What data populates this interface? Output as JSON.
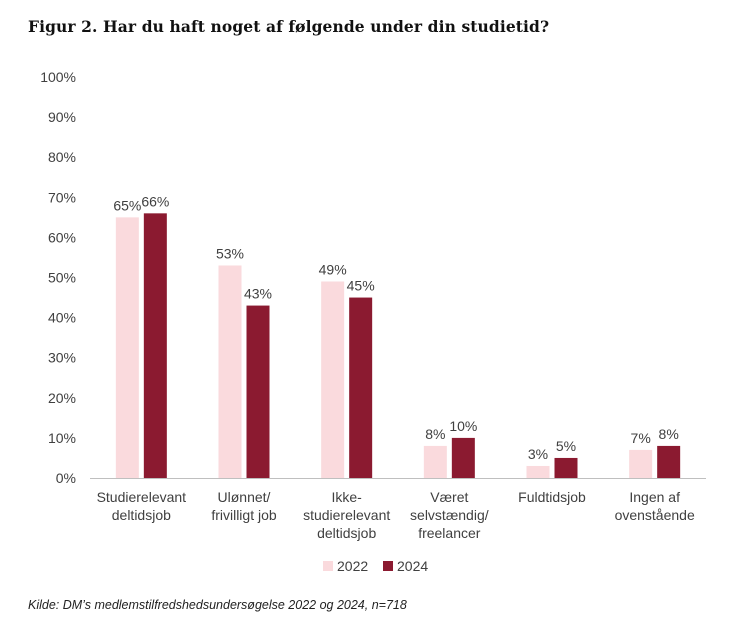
{
  "title": "Figur 2. Har du haft noget af følgende under din studietid?",
  "source": "Kilde: DM’s medlemstilfredshedsundersøgelse 2022 og 2024, n=718",
  "colors": {
    "series_2022": "#fadadd",
    "series_2024": "#8b1a30",
    "axis": "#bfbfbf",
    "text": "#404040"
  },
  "chart_data": {
    "type": "bar",
    "categories": [
      [
        "Studierelevant",
        "deltidsjob"
      ],
      [
        "Ulønnet/",
        "frivilligt job"
      ],
      [
        "Ikke-",
        "studierelevant",
        "deltidsjob"
      ],
      [
        "Været",
        "selvstændig/",
        "freelancer"
      ],
      [
        "Fuldtidsjob"
      ],
      [
        "Ingen af",
        "ovenstående"
      ]
    ],
    "series": [
      {
        "name": "2022",
        "values": [
          65,
          53,
          49,
          8,
          3,
          7
        ],
        "labels": [
          "65%",
          "53%",
          "49%",
          "8%",
          "3%",
          "7%"
        ]
      },
      {
        "name": "2024",
        "values": [
          66,
          43,
          45,
          10,
          5,
          8
        ],
        "labels": [
          "66%",
          "43%",
          "45%",
          "10%",
          "5%",
          "8%"
        ]
      }
    ],
    "ylim": [
      0,
      100
    ],
    "yticks": [
      "0%",
      "10%",
      "20%",
      "30%",
      "40%",
      "50%",
      "60%",
      "70%",
      "80%",
      "90%",
      "100%"
    ],
    "grid": false,
    "legend": "bottom-center"
  }
}
